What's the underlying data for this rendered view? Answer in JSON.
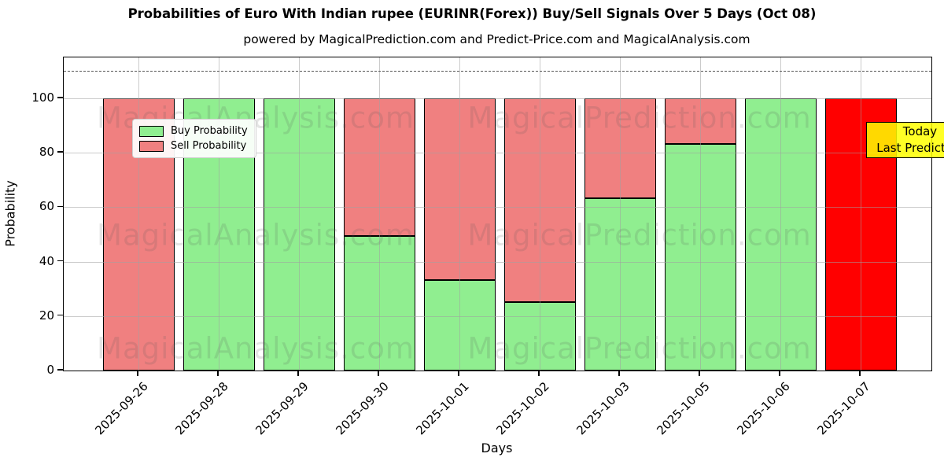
{
  "page": {
    "title": "Probabilities of Euro With Indian rupee (EURINR(Forex)) Buy/Sell Signals Over 5 Days (Oct 08)",
    "subtitle": "powered by MagicalPrediction.com and Predict-Price.com and MagicalAnalysis.com"
  },
  "legend": {
    "items": [
      {
        "label": "Buy Probability",
        "color": "#90ee90"
      },
      {
        "label": "Sell Probability",
        "color": "#f08080"
      }
    ]
  },
  "annotation_box": {
    "line1": "Today",
    "line2": "Last Prediction",
    "bg_color": "#ffff00"
  },
  "watermarks": {
    "left_text": "MagicalAnalysis.com",
    "right_text": "MagicalPrediction.com"
  },
  "colors": {
    "buy": "#90ee90",
    "sell": "#f08080",
    "today_bar": "#ff0000",
    "annotation_bg": "#ffff00"
  },
  "chart_data": {
    "type": "bar",
    "stacked": true,
    "title": "Probabilities of Euro With Indian rupee (EURINR(Forex)) Buy/Sell Signals Over 5 Days (Oct 08)",
    "xlabel": "Days",
    "ylabel": "Probability",
    "categories": [
      "2025-09-26",
      "2025-09-28",
      "2025-09-29",
      "2025-09-30",
      "2025-10-01",
      "2025-10-02",
      "2025-10-03",
      "2025-10-05",
      "2025-10-06",
      "2025-10-07"
    ],
    "series": [
      {
        "name": "Buy Probability",
        "color": "#90ee90",
        "values": [
          0,
          100,
          100,
          49.5,
          33.33,
          25,
          63.33,
          83.33,
          100,
          0
        ]
      },
      {
        "name": "Sell Probability",
        "color": "#f08080",
        "values": [
          100,
          0,
          0,
          50.5,
          66.67,
          75,
          36.67,
          16.67,
          0,
          0
        ]
      }
    ],
    "today_bar": {
      "category": "2025-10-07",
      "index": 9,
      "value": 100,
      "color": "#ff0000",
      "label": "Today / Last Prediction"
    },
    "yticks": [
      0,
      20,
      40,
      60,
      80,
      100
    ],
    "ylim": [
      0,
      115
    ],
    "dashed_line_y": 110,
    "grid": true,
    "legend_position": "upper left"
  }
}
